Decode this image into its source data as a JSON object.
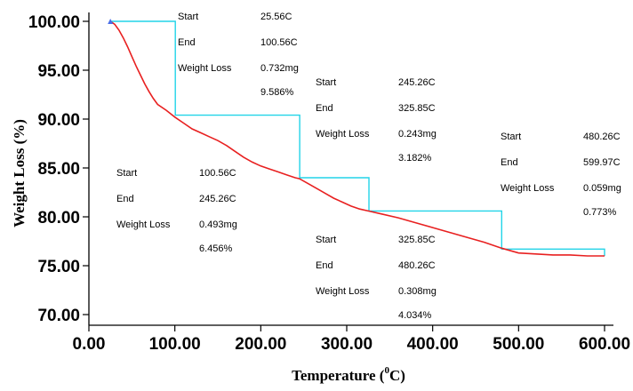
{
  "chart_data": {
    "type": "line",
    "xlabel": "Temperature (",
    "xlabel_sup": "0",
    "xlabel_end": "C)",
    "ylabel": "Weight Loss (%)",
    "xlim": [
      0,
      600
    ],
    "ylim": [
      70,
      100
    ],
    "x_ticks": [
      "0.00",
      "100.00",
      "200.00",
      "300.00",
      "400.00",
      "500.00",
      "600.00"
    ],
    "y_ticks": [
      "100.00",
      "95.00",
      "90.00",
      "85.00",
      "80.00",
      "75.00",
      "70.00"
    ],
    "grid": false,
    "colors": {
      "curve": "#e82020",
      "steps": "#22d4e8",
      "axis": "#000000"
    },
    "series": [
      {
        "x": [
          25,
          30,
          35,
          40,
          45,
          50,
          55,
          60,
          65,
          70,
          75,
          80,
          90,
          100,
          110,
          120,
          130,
          140,
          150,
          160,
          170,
          180,
          190,
          200,
          210,
          220,
          230,
          240,
          245,
          255,
          265,
          275,
          285,
          295,
          305,
          315,
          325,
          340,
          360,
          380,
          400,
          420,
          440,
          460,
          480,
          500,
          520,
          540,
          560,
          580,
          600
        ],
        "values": [
          100.0,
          99.7,
          99.1,
          98.3,
          97.4,
          96.4,
          95.4,
          94.5,
          93.6,
          92.8,
          92.1,
          91.5,
          90.9,
          90.2,
          89.6,
          89.0,
          88.6,
          88.2,
          87.8,
          87.3,
          86.7,
          86.1,
          85.6,
          85.2,
          84.9,
          84.6,
          84.3,
          84.0,
          83.9,
          83.4,
          82.9,
          82.4,
          81.9,
          81.5,
          81.1,
          80.8,
          80.6,
          80.3,
          79.9,
          79.4,
          78.9,
          78.4,
          77.9,
          77.4,
          76.8,
          76.3,
          76.2,
          76.1,
          76.1,
          76.0,
          76.0
        ]
      },
      {
        "x": [
          25,
          100.56,
          100.56,
          245.26,
          245.26,
          325.85,
          325.85,
          480.26,
          480.26,
          599.97,
          599.97
        ],
        "values": [
          100.0,
          100.0,
          90.4,
          90.4,
          84.0,
          84.0,
          80.6,
          80.6,
          76.7,
          76.7,
          76.0
        ]
      }
    ],
    "annotations": [
      {
        "start": "25.56C",
        "end": "100.56C",
        "loss_mg": "0.732mg",
        "loss_pct": "9.586%"
      },
      {
        "start": "100.56C",
        "end": "245.26C",
        "loss_mg": "0.493mg",
        "loss_pct": "6.456%"
      },
      {
        "start": "245.26C",
        "end": "325.85C",
        "loss_mg": "0.243mg",
        "loss_pct": "3.182%"
      },
      {
        "start": "325.85C",
        "end": "480.26C",
        "loss_mg": "0.308mg",
        "loss_pct": "4.034%"
      },
      {
        "start": "480.26C",
        "end": "599.97C",
        "loss_mg": "0.059mg",
        "loss_pct": "0.773%"
      }
    ],
    "annotation_labels": {
      "start": "Start",
      "end": "End",
      "loss": "Weight Loss"
    }
  }
}
